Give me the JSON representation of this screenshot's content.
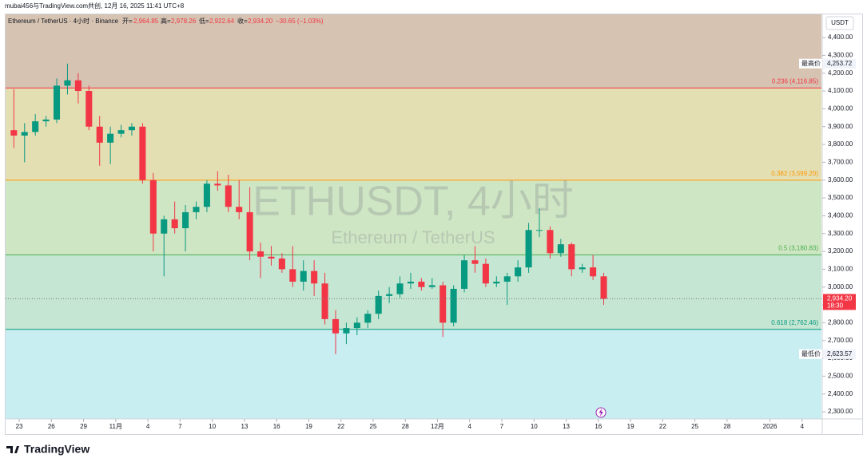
{
  "chart_data": {
    "type": "candlestick",
    "header": {
      "credit": "mubai456与TradingView.com共创, 12月 16, 2025 11:41 UTC+8",
      "symbol": "Ethereum / TetherUS · 4小时 · Binance",
      "open_label": "开=",
      "open": "2,964.85",
      "high_label": "高=",
      "high": "2,978.26",
      "low_label": "低=",
      "low": "2,922.64",
      "close_label": "收=",
      "close": "2,934.20",
      "change": "−30.65 (−1.03%)"
    },
    "currency": "USDT",
    "watermark": "ETHUSDT, 4小时",
    "watermark_sub": "Ethereum / TetherUS",
    "logo": "TradingView",
    "up_color": "#089981",
    "down_color": "#f23645",
    "x": [
      -0.5,
      0.5,
      1.5,
      2.5,
      3.5,
      4.5,
      5.5,
      6.5,
      7.5,
      8.5,
      9.5,
      10.5,
      11.5,
      12.5,
      13.5,
      14.5,
      15.5,
      16.5,
      17.5,
      18.5,
      19.5,
      20.5,
      21.5,
      22.5,
      23.5,
      24.5,
      25.5,
      26.5,
      27.5,
      28.5,
      29.5,
      30.5,
      31.5,
      32.5,
      33.5,
      34.5,
      35.5,
      36.5,
      37.5,
      38.5,
      39.5,
      40.5,
      41.5,
      42.5,
      43.5,
      44.5,
      45.5,
      46.5,
      47.5,
      48.5,
      49.5,
      50.5,
      51.5,
      52.5,
      53.5,
      54.5
    ],
    "open": [
      3880,
      3850,
      3870,
      3930,
      3940,
      4130,
      4160,
      4100,
      3900,
      3810,
      3860,
      3880,
      3900,
      3600,
      3300,
      3380,
      3330,
      3420,
      3450,
      3580,
      3570,
      3450,
      3420,
      3200,
      3170,
      3160,
      3100,
      3030,
      3090,
      3020,
      2820,
      2740,
      2770,
      2800,
      2850,
      2950,
      2960,
      3020,
      3030,
      3000,
      3010,
      2800,
      2990,
      3150,
      3130,
      3020,
      3030,
      3060,
      3110,
      3320,
      3320,
      3190,
      3240,
      3100,
      3110,
      3060
    ],
    "high": [
      4110,
      3920,
      3970,
      3960,
      4170,
      4253.72,
      4200,
      4130,
      3960,
      3900,
      3910,
      3920,
      3920,
      3640,
      3400,
      3480,
      3460,
      3480,
      3600,
      3650,
      3630,
      3600,
      3560,
      3250,
      3230,
      3190,
      3230,
      3150,
      3150,
      3080,
      2870,
      2800,
      2830,
      2870,
      2980,
      3000,
      3060,
      3080,
      3050,
      3050,
      3030,
      3010,
      3180,
      3230,
      3160,
      3060,
      3080,
      3150,
      3360,
      3440,
      3340,
      3270,
      3250,
      3130,
      3180,
      3080
    ],
    "low": [
      3780,
      3700,
      3850,
      3900,
      3920,
      4080,
      4030,
      3880,
      3680,
      3690,
      3840,
      3850,
      3580,
      3200,
      3060,
      3300,
      3200,
      3380,
      3420,
      3540,
      3420,
      3380,
      3150,
      3050,
      3120,
      3080,
      3000,
      2980,
      2950,
      2790,
      2623.57,
      2680,
      2730,
      2770,
      2820,
      2910,
      2940,
      2990,
      2980,
      2990,
      2720,
      2780,
      2970,
      3080,
      3000,
      3000,
      2900,
      3030,
      3080,
      3280,
      3160,
      3170,
      3060,
      3080,
      3040,
      2900
    ],
    "close": [
      3850,
      3870,
      3930,
      3940,
      4130,
      4160,
      4100,
      3900,
      3810,
      3860,
      3880,
      3900,
      3600,
      3300,
      3380,
      3330,
      3420,
      3450,
      3580,
      3570,
      3450,
      3420,
      3200,
      3170,
      3160,
      3100,
      3030,
      3090,
      3020,
      2820,
      2740,
      2770,
      2800,
      2850,
      2950,
      2960,
      3020,
      3030,
      3000,
      3010,
      2800,
      2990,
      3150,
      3130,
      3020,
      3030,
      3060,
      3110,
      3320,
      3320,
      3190,
      3240,
      3100,
      3110,
      3060,
      2934.2
    ],
    "xlim": [
      -1.27,
      74.8
    ],
    "xticks": [
      {
        "value": 0,
        "label": "23"
      },
      {
        "value": 3,
        "label": "26"
      },
      {
        "value": 6,
        "label": "29"
      },
      {
        "value": 9,
        "label": "11月"
      },
      {
        "value": 12,
        "label": "4"
      },
      {
        "value": 15,
        "label": "7"
      },
      {
        "value": 18,
        "label": "10"
      },
      {
        "value": 21,
        "label": "13"
      },
      {
        "value": 24,
        "label": "16"
      },
      {
        "value": 27,
        "label": "19"
      },
      {
        "value": 30,
        "label": "22"
      },
      {
        "value": 33,
        "label": "25"
      },
      {
        "value": 36,
        "label": "28"
      },
      {
        "value": 39,
        "label": "12月"
      },
      {
        "value": 42,
        "label": "4"
      },
      {
        "value": 45,
        "label": "7"
      },
      {
        "value": 48,
        "label": "10"
      },
      {
        "value": 51,
        "label": "13"
      },
      {
        "value": 54,
        "label": "16"
      },
      {
        "value": 57,
        "label": "19"
      },
      {
        "value": 60,
        "label": "22"
      },
      {
        "value": 63,
        "label": "25"
      },
      {
        "value": 66,
        "label": "28"
      },
      {
        "value": 70,
        "label": "2026"
      },
      {
        "value": 73,
        "label": "4"
      }
    ],
    "ylim": [
      2260,
      4530
    ],
    "yticks": [
      {
        "value": 2300,
        "label": "2,300.00"
      },
      {
        "value": 2400,
        "label": "2,400.00"
      },
      {
        "value": 2500,
        "label": "2,500.00"
      },
      {
        "value": 2600,
        "label": "2,600.00"
      },
      {
        "value": 2700,
        "label": "2,700.00"
      },
      {
        "value": 2800,
        "label": "2,800.00"
      },
      {
        "value": 2900,
        "label": "2,900.00"
      },
      {
        "value": 3000,
        "label": "3,000.00"
      },
      {
        "value": 3100,
        "label": "3,100.00"
      },
      {
        "value": 3200,
        "label": "3,200.00"
      },
      {
        "value": 3300,
        "label": "3,300.00"
      },
      {
        "value": 3400,
        "label": "3,400.00"
      },
      {
        "value": 3500,
        "label": "3,500.00"
      },
      {
        "value": 3600,
        "label": "3,600.00"
      },
      {
        "value": 3700,
        "label": "3,700.00"
      },
      {
        "value": 3800,
        "label": "3,800.00"
      },
      {
        "value": 3900,
        "label": "3,900.00"
      },
      {
        "value": 4000,
        "label": "4,000.00"
      },
      {
        "value": 4100,
        "label": "4,100.00"
      },
      {
        "value": 4200,
        "label": "4,200.00"
      },
      {
        "value": 4300,
        "label": "4,300.00"
      },
      {
        "value": 4400,
        "label": "4,400.00"
      }
    ],
    "fib_levels": [
      {
        "label": "0.236 (4,116.85)",
        "price": 4116.85,
        "color": "#f23645",
        "band": "#e4dfb3"
      },
      {
        "label": "0.382 (3,599.20)",
        "price": 3599.2,
        "color": "#ff9800",
        "band": "#cfe6c4"
      },
      {
        "label": "0.5 (3,180.83)",
        "price": 3180.83,
        "color": "#4caf50",
        "band": "#c5e6d2"
      },
      {
        "label": "0.618 (2,762.46)",
        "price": 2762.46,
        "color": "#089981",
        "band": "#c8eef1"
      }
    ],
    "top_band": "#d6c3b1",
    "high_marker": {
      "label": "最高价",
      "value": 4253.72,
      "value_label": "4,253.72"
    },
    "low_marker": {
      "label": "最低价",
      "value": 2623.57,
      "value_label": "2,623.57"
    },
    "last_price": {
      "value": 2934.2,
      "label": "2,934.20",
      "countdown": "18:30"
    }
  }
}
